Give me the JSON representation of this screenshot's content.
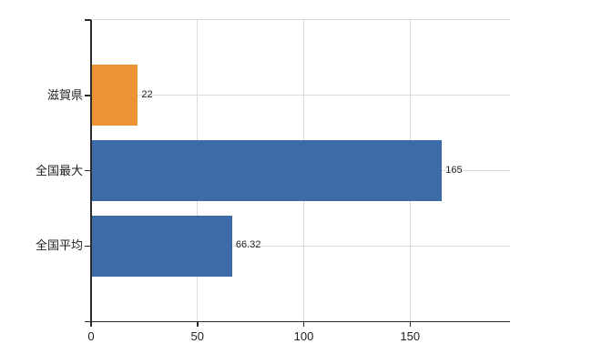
{
  "chart_data": {
    "type": "bar",
    "orientation": "horizontal",
    "categories": [
      "滋賀県",
      "全国最大",
      "全国平均"
    ],
    "values": [
      22,
      165,
      66.32
    ],
    "value_labels": [
      "22",
      "165",
      "66.32"
    ],
    "bar_colors": [
      "#EC9336",
      "#3C6BA8",
      "#3C6BA8"
    ],
    "x_ticks": [
      0,
      50,
      100,
      150
    ],
    "x_tick_labels": [
      "0",
      "50",
      "100",
      "150"
    ],
    "xlim": [
      0,
      197
    ],
    "grid": true,
    "legend_position": "none",
    "colors": {
      "highlight_bar": "#EC9336",
      "comparison_bar": "#3C6BA8",
      "gridline": "#DBDBDB",
      "axis": "#2b2b2b",
      "text": "#1f1f1f",
      "background": "#FFFFFF"
    }
  }
}
